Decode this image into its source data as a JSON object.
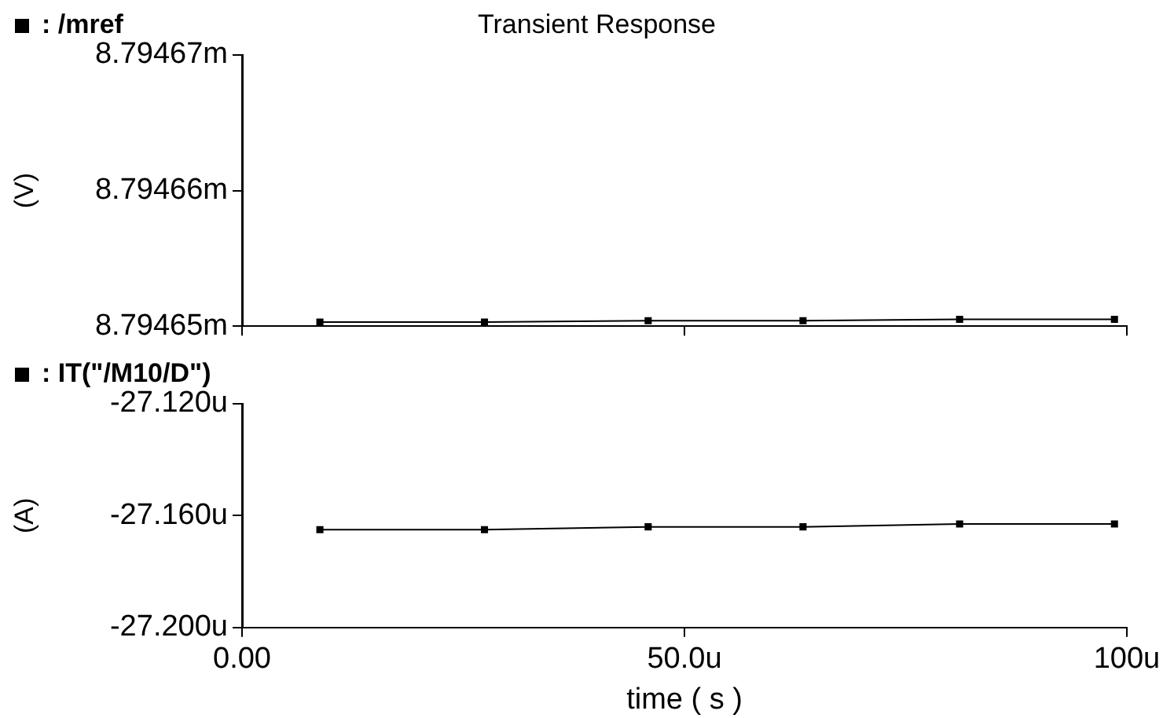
{
  "chart_data": [
    {
      "type": "line",
      "title": "Transient Response",
      "ylabel": "(V)",
      "x": [
        8.8,
        27.4,
        45.9,
        63.4,
        81.1,
        98.6
      ],
      "series": [
        {
          "name": ": /mref",
          "color": "#000000",
          "values": [
            8.7946503,
            8.7946503,
            8.7946504,
            8.7946504,
            8.7946505,
            8.7946505
          ]
        }
      ],
      "xlim": [
        0,
        100
      ],
      "xticks": [
        {
          "value": 0,
          "label": null
        },
        {
          "value": 50,
          "label": null
        },
        {
          "value": 100,
          "label": null
        }
      ],
      "ylim": [
        8.79465,
        8.79467
      ],
      "yticks": [
        {
          "value": 8.79465,
          "label": "8.79465m"
        },
        {
          "value": 8.79466,
          "label": "8.79466m"
        },
        {
          "value": 8.79467,
          "label": "8.79467m"
        }
      ],
      "tick_labels": "y",
      "grid": false,
      "legend": "top left",
      "marker": "square"
    },
    {
      "type": "line",
      "ylabel": "(A)",
      "xlabel": "time ( s )",
      "x": [
        8.8,
        27.4,
        45.9,
        63.4,
        81.1,
        98.6
      ],
      "series": [
        {
          "name": ": IT(\"/M10/D\")",
          "color": "#000000",
          "values": [
            -27.165,
            -27.165,
            -27.164,
            -27.164,
            -27.163,
            -27.163
          ]
        }
      ],
      "xlim": [
        0,
        100
      ],
      "xticks": [
        {
          "value": 0,
          "label": "0.00"
        },
        {
          "value": 50,
          "label": "50.0u"
        },
        {
          "value": 100,
          "label": "100u"
        }
      ],
      "ylim": [
        -27.2,
        -27.12
      ],
      "yticks": [
        {
          "value": -27.2,
          "label": "-27.200u"
        },
        {
          "value": -27.16,
          "label": "-27.160u"
        },
        {
          "value": -27.12,
          "label": "-27.120u"
        }
      ],
      "grid": false,
      "legend": "top left",
      "marker": "square"
    }
  ]
}
